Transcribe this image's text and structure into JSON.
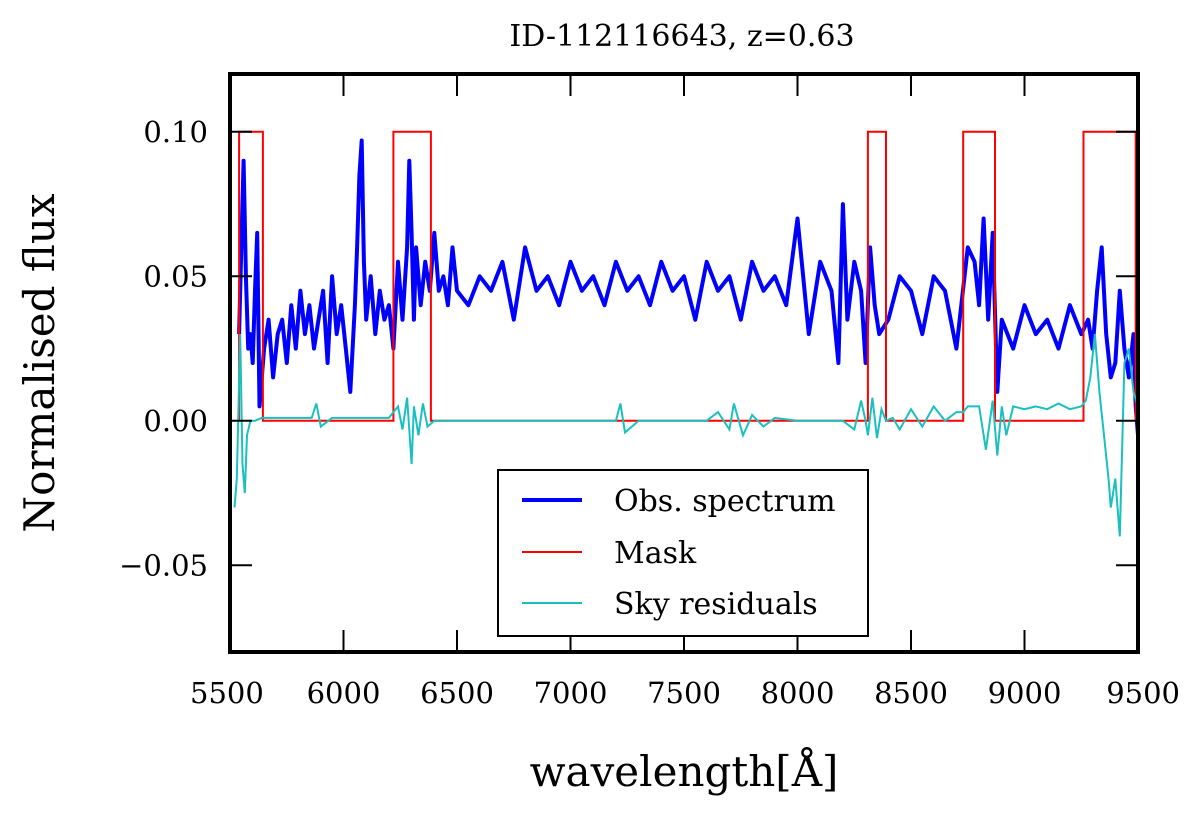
{
  "chart_data": {
    "type": "line",
    "title": "ID-112116643, z=0.63",
    "xlabel": "wavelength[Å]",
    "ylabel": "Normalised flux",
    "xlim": [
      5500,
      9500
    ],
    "ylim": [
      -0.08,
      0.12
    ],
    "xticks": [
      5500,
      6000,
      6500,
      7000,
      7500,
      8000,
      8500,
      9000,
      9500
    ],
    "yticks": [
      -0.05,
      0.0,
      0.05,
      0.1
    ],
    "ytick_labels": [
      "−0.05",
      "0.00",
      "0.05",
      "0.10"
    ],
    "xtick_labels": [
      "5500",
      "6000",
      "6500",
      "7000",
      "7500",
      "8000",
      "8500",
      "9000",
      "9500"
    ],
    "grid": false,
    "legend_position": "lower-center",
    "series": [
      {
        "name": "Obs. spectrum",
        "color": "#0000ff",
        "x": [
          5540,
          5550,
          5560,
          5570,
          5580,
          5590,
          5600,
          5610,
          5620,
          5630,
          5650,
          5670,
          5690,
          5710,
          5730,
          5750,
          5770,
          5790,
          5810,
          5830,
          5850,
          5870,
          5890,
          5910,
          5930,
          5950,
          5970,
          5990,
          6010,
          6030,
          6050,
          6060,
          6070,
          6080,
          6090,
          6100,
          6120,
          6140,
          6160,
          6180,
          6200,
          6220,
          6240,
          6260,
          6280,
          6290,
          6300,
          6310,
          6320,
          6340,
          6360,
          6380,
          6400,
          6420,
          6440,
          6460,
          6480,
          6500,
          6550,
          6600,
          6650,
          6700,
          6750,
          6800,
          6850,
          6900,
          6950,
          7000,
          7050,
          7100,
          7150,
          7200,
          7250,
          7300,
          7350,
          7400,
          7450,
          7500,
          7550,
          7600,
          7650,
          7700,
          7750,
          7800,
          7850,
          7900,
          7950,
          8000,
          8050,
          8100,
          8150,
          8180,
          8200,
          8220,
          8250,
          8280,
          8300,
          8320,
          8340,
          8360,
          8400,
          8450,
          8500,
          8550,
          8600,
          8650,
          8700,
          8750,
          8780,
          8800,
          8820,
          8840,
          8860,
          8880,
          8900,
          8950,
          9000,
          9050,
          9100,
          9150,
          9200,
          9250,
          9280,
          9300,
          9320,
          9340,
          9360,
          9380,
          9400,
          9420,
          9440,
          9460,
          9480,
          9490,
          9500
        ],
        "y": [
          0.03,
          0.06,
          0.09,
          0.05,
          0.025,
          0.03,
          0.02,
          0.045,
          0.065,
          0.005,
          0.025,
          0.035,
          0.015,
          0.03,
          0.035,
          0.02,
          0.04,
          0.025,
          0.045,
          0.03,
          0.04,
          0.025,
          0.035,
          0.045,
          0.02,
          0.05,
          0.03,
          0.04,
          0.025,
          0.01,
          0.04,
          0.06,
          0.085,
          0.097,
          0.055,
          0.035,
          0.05,
          0.03,
          0.045,
          0.035,
          0.04,
          0.025,
          0.055,
          0.035,
          0.06,
          0.09,
          0.065,
          0.035,
          0.06,
          0.04,
          0.055,
          0.045,
          0.065,
          0.045,
          0.05,
          0.04,
          0.06,
          0.045,
          0.04,
          0.05,
          0.045,
          0.055,
          0.035,
          0.06,
          0.045,
          0.05,
          0.04,
          0.055,
          0.045,
          0.05,
          0.04,
          0.055,
          0.045,
          0.05,
          0.04,
          0.055,
          0.045,
          0.05,
          0.035,
          0.055,
          0.045,
          0.05,
          0.035,
          0.055,
          0.045,
          0.05,
          0.04,
          0.07,
          0.03,
          0.055,
          0.045,
          0.02,
          0.075,
          0.035,
          0.055,
          0.045,
          0.02,
          0.06,
          0.04,
          0.03,
          0.035,
          0.05,
          0.045,
          0.03,
          0.05,
          0.045,
          0.025,
          0.06,
          0.055,
          0.04,
          0.07,
          0.035,
          0.065,
          0.01,
          0.035,
          0.025,
          0.04,
          0.03,
          0.035,
          0.025,
          0.04,
          0.03,
          0.035,
          0.025,
          0.045,
          0.06,
          0.03,
          0.015,
          0.02,
          0.045,
          0.025,
          0.015,
          0.03,
          0.005,
          -0.005
        ]
      },
      {
        "name": "Mask",
        "color": "#ff0000",
        "x": [
          5540,
          5540,
          5645,
          5645,
          6220,
          6220,
          6385,
          6385,
          8310,
          8310,
          8390,
          8390,
          8730,
          8730,
          8870,
          8870,
          9260,
          9260,
          9490,
          9490,
          9500
        ],
        "y": [
          0.0,
          0.1,
          0.1,
          0.0,
          0.0,
          0.1,
          0.1,
          0.0,
          0.0,
          0.1,
          0.1,
          0.0,
          0.0,
          0.1,
          0.1,
          0.0,
          0.0,
          0.1,
          0.1,
          0.0,
          0.0
        ]
      },
      {
        "name": "Sky residuals",
        "color": "#1ac0c0",
        "x": [
          5520,
          5530,
          5545,
          5555,
          5565,
          5575,
          5590,
          5610,
          5640,
          5700,
          5760,
          5800,
          5860,
          5880,
          5900,
          5950,
          6000,
          6100,
          6200,
          6240,
          6260,
          6280,
          6300,
          6310,
          6330,
          6350,
          6370,
          6400,
          6450,
          6500,
          6600,
          6700,
          6800,
          6900,
          7000,
          7100,
          7200,
          7220,
          7240,
          7300,
          7400,
          7500,
          7600,
          7650,
          7700,
          7720,
          7760,
          7800,
          7850,
          7900,
          8000,
          8100,
          8200,
          8250,
          8280,
          8300,
          8310,
          8330,
          8350,
          8370,
          8390,
          8420,
          8450,
          8500,
          8550,
          8600,
          8650,
          8700,
          8730,
          8750,
          8800,
          8830,
          8860,
          8880,
          8900,
          8920,
          8950,
          9000,
          9050,
          9100,
          9150,
          9200,
          9250,
          9270,
          9290,
          9310,
          9330,
          9350,
          9370,
          9380,
          9400,
          9420,
          9440,
          9460,
          9480,
          9500
        ],
        "y": [
          -0.03,
          -0.02,
          0.03,
          -0.015,
          -0.025,
          -0.005,
          0.0,
          0.0,
          0.001,
          0.001,
          0.001,
          0.001,
          0.001,
          0.006,
          -0.002,
          0.001,
          0.001,
          0.001,
          0.001,
          0.005,
          -0.003,
          0.008,
          -0.015,
          0.005,
          -0.005,
          0.006,
          -0.002,
          0.0,
          0.0,
          0.0,
          0.0,
          0.0,
          0.0,
          0.0,
          0.0,
          0.0,
          0.0,
          0.006,
          -0.004,
          0.0,
          0.0,
          0.0,
          0.0,
          0.003,
          -0.003,
          0.006,
          -0.005,
          0.002,
          -0.002,
          0.001,
          0.0,
          0.0,
          0.0,
          -0.003,
          0.007,
          0.0,
          -0.005,
          0.008,
          -0.006,
          0.004,
          0.0,
          0.001,
          -0.003,
          0.004,
          -0.002,
          0.005,
          0.0,
          0.003,
          0.003,
          0.005,
          0.005,
          -0.01,
          0.007,
          -0.012,
          0.005,
          -0.005,
          0.005,
          0.004,
          0.005,
          0.004,
          0.006,
          0.004,
          0.005,
          0.007,
          0.015,
          0.03,
          0.01,
          -0.005,
          -0.02,
          -0.03,
          -0.02,
          -0.04,
          0.02,
          0.025,
          0.01,
          0.005
        ]
      }
    ]
  }
}
